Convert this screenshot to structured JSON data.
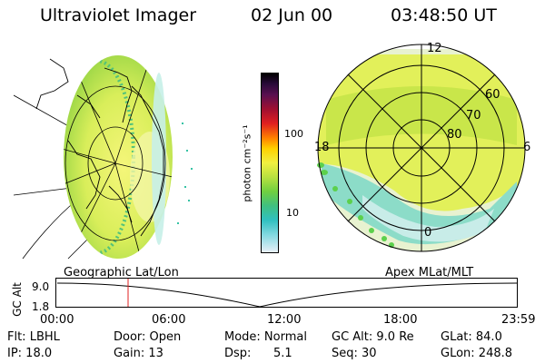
{
  "header": {
    "instrument": "Ultraviolet Imager",
    "date": "02 Jun 00",
    "time": "03:48:50 UT"
  },
  "colorbar": {
    "unit_label": "photon cm⁻²s⁻¹",
    "ticks": [
      "100",
      "10"
    ]
  },
  "polar_plot": {
    "mlt_labels": [
      "12",
      "18",
      "6",
      "0"
    ],
    "lat_labels": [
      "60",
      "70",
      "80"
    ]
  },
  "altitude_plot": {
    "left_title": "Geographic Lat/Lon",
    "right_title": "Apex MLat/MLT",
    "ylabel": "GC Alt",
    "y_ticks": [
      "9.0",
      "1.8"
    ],
    "x_ticks": [
      "00:00",
      "06:00",
      "12:00",
      "18:00",
      "23:59"
    ]
  },
  "info": {
    "flt": "Flt: LBHL",
    "ip": "IP: 18.0",
    "door": "Door: Open",
    "gain": "Gain: 13",
    "mode": "Mode: Normal",
    "dsp_label": "Dsp:",
    "dsp_value": "5.1",
    "gc_alt": "GC Alt: 9.0 Re",
    "seq": "Seq: 30",
    "glat": "GLat: 84.0",
    "glon": "GLon: 248.8"
  }
}
